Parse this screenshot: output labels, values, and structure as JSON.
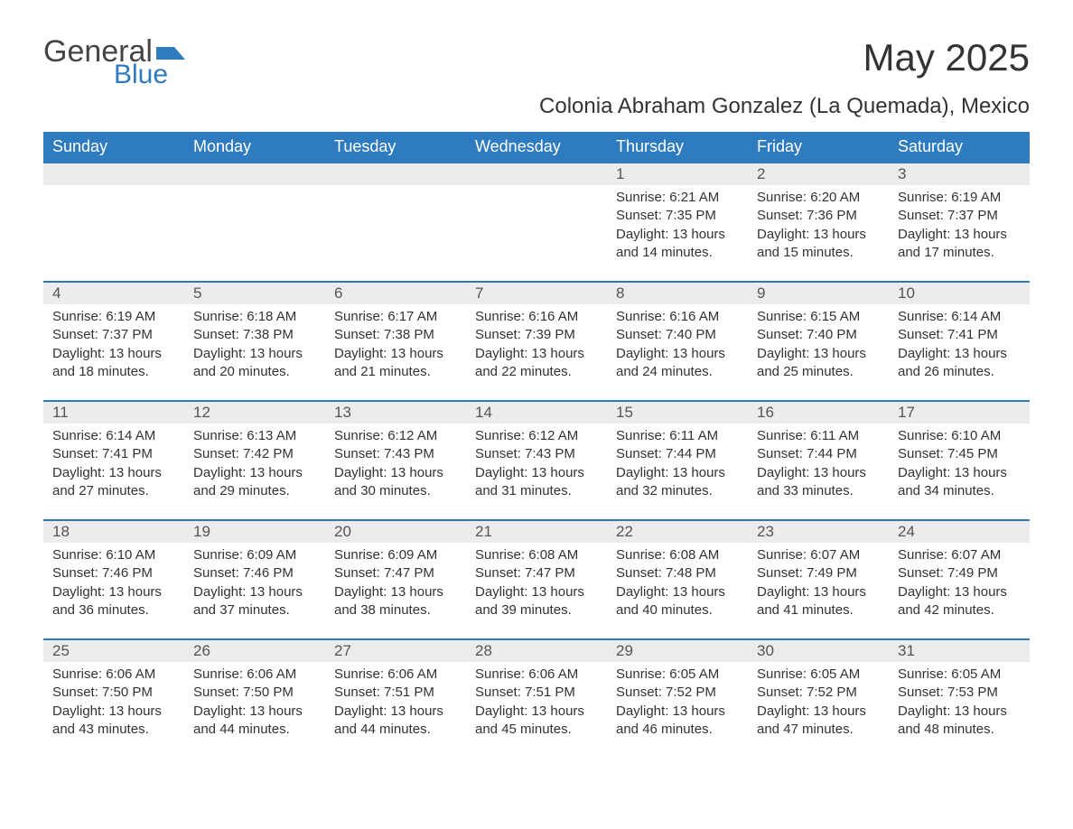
{
  "brand": {
    "name_part1": "General",
    "name_part2": "Blue",
    "flag_color": "#2f7bbf",
    "text_color_muted": "#444444"
  },
  "title": "May 2025",
  "subtitle": "Colonia Abraham Gonzalez (La Quemada), Mexico",
  "colors": {
    "header_bg": "#2f7bbf",
    "header_text": "#ffffff",
    "daybar_bg": "#ececec",
    "daybar_border": "#2f7bbf",
    "body_text": "#333333",
    "page_bg": "#ffffff"
  },
  "typography": {
    "title_fontsize": 42,
    "subtitle_fontsize": 24,
    "header_fontsize": 18,
    "daynum_fontsize": 17,
    "body_fontsize": 15
  },
  "calendar": {
    "type": "table",
    "columns": [
      "Sunday",
      "Monday",
      "Tuesday",
      "Wednesday",
      "Thursday",
      "Friday",
      "Saturday"
    ],
    "weeks": [
      [
        null,
        null,
        null,
        null,
        {
          "n": "1",
          "sunrise": "Sunrise: 6:21 AM",
          "sunset": "Sunset: 7:35 PM",
          "dl1": "Daylight: 13 hours",
          "dl2": "and 14 minutes."
        },
        {
          "n": "2",
          "sunrise": "Sunrise: 6:20 AM",
          "sunset": "Sunset: 7:36 PM",
          "dl1": "Daylight: 13 hours",
          "dl2": "and 15 minutes."
        },
        {
          "n": "3",
          "sunrise": "Sunrise: 6:19 AM",
          "sunset": "Sunset: 7:37 PM",
          "dl1": "Daylight: 13 hours",
          "dl2": "and 17 minutes."
        }
      ],
      [
        {
          "n": "4",
          "sunrise": "Sunrise: 6:19 AM",
          "sunset": "Sunset: 7:37 PM",
          "dl1": "Daylight: 13 hours",
          "dl2": "and 18 minutes."
        },
        {
          "n": "5",
          "sunrise": "Sunrise: 6:18 AM",
          "sunset": "Sunset: 7:38 PM",
          "dl1": "Daylight: 13 hours",
          "dl2": "and 20 minutes."
        },
        {
          "n": "6",
          "sunrise": "Sunrise: 6:17 AM",
          "sunset": "Sunset: 7:38 PM",
          "dl1": "Daylight: 13 hours",
          "dl2": "and 21 minutes."
        },
        {
          "n": "7",
          "sunrise": "Sunrise: 6:16 AM",
          "sunset": "Sunset: 7:39 PM",
          "dl1": "Daylight: 13 hours",
          "dl2": "and 22 minutes."
        },
        {
          "n": "8",
          "sunrise": "Sunrise: 6:16 AM",
          "sunset": "Sunset: 7:40 PM",
          "dl1": "Daylight: 13 hours",
          "dl2": "and 24 minutes."
        },
        {
          "n": "9",
          "sunrise": "Sunrise: 6:15 AM",
          "sunset": "Sunset: 7:40 PM",
          "dl1": "Daylight: 13 hours",
          "dl2": "and 25 minutes."
        },
        {
          "n": "10",
          "sunrise": "Sunrise: 6:14 AM",
          "sunset": "Sunset: 7:41 PM",
          "dl1": "Daylight: 13 hours",
          "dl2": "and 26 minutes."
        }
      ],
      [
        {
          "n": "11",
          "sunrise": "Sunrise: 6:14 AM",
          "sunset": "Sunset: 7:41 PM",
          "dl1": "Daylight: 13 hours",
          "dl2": "and 27 minutes."
        },
        {
          "n": "12",
          "sunrise": "Sunrise: 6:13 AM",
          "sunset": "Sunset: 7:42 PM",
          "dl1": "Daylight: 13 hours",
          "dl2": "and 29 minutes."
        },
        {
          "n": "13",
          "sunrise": "Sunrise: 6:12 AM",
          "sunset": "Sunset: 7:43 PM",
          "dl1": "Daylight: 13 hours",
          "dl2": "and 30 minutes."
        },
        {
          "n": "14",
          "sunrise": "Sunrise: 6:12 AM",
          "sunset": "Sunset: 7:43 PM",
          "dl1": "Daylight: 13 hours",
          "dl2": "and 31 minutes."
        },
        {
          "n": "15",
          "sunrise": "Sunrise: 6:11 AM",
          "sunset": "Sunset: 7:44 PM",
          "dl1": "Daylight: 13 hours",
          "dl2": "and 32 minutes."
        },
        {
          "n": "16",
          "sunrise": "Sunrise: 6:11 AM",
          "sunset": "Sunset: 7:44 PM",
          "dl1": "Daylight: 13 hours",
          "dl2": "and 33 minutes."
        },
        {
          "n": "17",
          "sunrise": "Sunrise: 6:10 AM",
          "sunset": "Sunset: 7:45 PM",
          "dl1": "Daylight: 13 hours",
          "dl2": "and 34 minutes."
        }
      ],
      [
        {
          "n": "18",
          "sunrise": "Sunrise: 6:10 AM",
          "sunset": "Sunset: 7:46 PM",
          "dl1": "Daylight: 13 hours",
          "dl2": "and 36 minutes."
        },
        {
          "n": "19",
          "sunrise": "Sunrise: 6:09 AM",
          "sunset": "Sunset: 7:46 PM",
          "dl1": "Daylight: 13 hours",
          "dl2": "and 37 minutes."
        },
        {
          "n": "20",
          "sunrise": "Sunrise: 6:09 AM",
          "sunset": "Sunset: 7:47 PM",
          "dl1": "Daylight: 13 hours",
          "dl2": "and 38 minutes."
        },
        {
          "n": "21",
          "sunrise": "Sunrise: 6:08 AM",
          "sunset": "Sunset: 7:47 PM",
          "dl1": "Daylight: 13 hours",
          "dl2": "and 39 minutes."
        },
        {
          "n": "22",
          "sunrise": "Sunrise: 6:08 AM",
          "sunset": "Sunset: 7:48 PM",
          "dl1": "Daylight: 13 hours",
          "dl2": "and 40 minutes."
        },
        {
          "n": "23",
          "sunrise": "Sunrise: 6:07 AM",
          "sunset": "Sunset: 7:49 PM",
          "dl1": "Daylight: 13 hours",
          "dl2": "and 41 minutes."
        },
        {
          "n": "24",
          "sunrise": "Sunrise: 6:07 AM",
          "sunset": "Sunset: 7:49 PM",
          "dl1": "Daylight: 13 hours",
          "dl2": "and 42 minutes."
        }
      ],
      [
        {
          "n": "25",
          "sunrise": "Sunrise: 6:06 AM",
          "sunset": "Sunset: 7:50 PM",
          "dl1": "Daylight: 13 hours",
          "dl2": "and 43 minutes."
        },
        {
          "n": "26",
          "sunrise": "Sunrise: 6:06 AM",
          "sunset": "Sunset: 7:50 PM",
          "dl1": "Daylight: 13 hours",
          "dl2": "and 44 minutes."
        },
        {
          "n": "27",
          "sunrise": "Sunrise: 6:06 AM",
          "sunset": "Sunset: 7:51 PM",
          "dl1": "Daylight: 13 hours",
          "dl2": "and 44 minutes."
        },
        {
          "n": "28",
          "sunrise": "Sunrise: 6:06 AM",
          "sunset": "Sunset: 7:51 PM",
          "dl1": "Daylight: 13 hours",
          "dl2": "and 45 minutes."
        },
        {
          "n": "29",
          "sunrise": "Sunrise: 6:05 AM",
          "sunset": "Sunset: 7:52 PM",
          "dl1": "Daylight: 13 hours",
          "dl2": "and 46 minutes."
        },
        {
          "n": "30",
          "sunrise": "Sunrise: 6:05 AM",
          "sunset": "Sunset: 7:52 PM",
          "dl1": "Daylight: 13 hours",
          "dl2": "and 47 minutes."
        },
        {
          "n": "31",
          "sunrise": "Sunrise: 6:05 AM",
          "sunset": "Sunset: 7:53 PM",
          "dl1": "Daylight: 13 hours",
          "dl2": "and 48 minutes."
        }
      ]
    ]
  }
}
